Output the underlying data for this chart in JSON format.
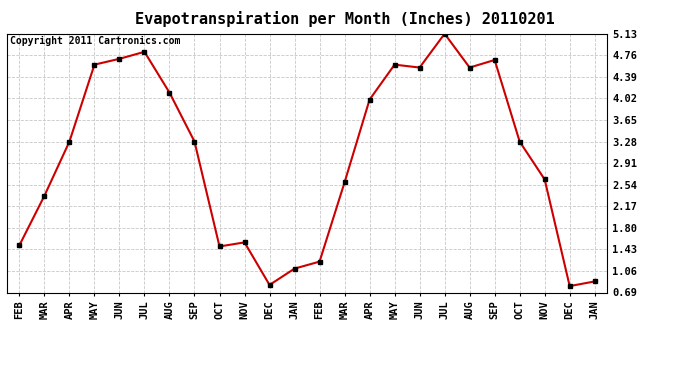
{
  "title": "Evapotranspiration per Month (Inches) 20110201",
  "copyright": "Copyright 2011 Cartronics.com",
  "x_labels": [
    "FEB",
    "MAR",
    "APR",
    "MAY",
    "JUN",
    "JUL",
    "AUG",
    "SEP",
    "OCT",
    "NOV",
    "DEC",
    "JAN",
    "FEB",
    "MAR",
    "APR",
    "MAY",
    "JUN",
    "JUL",
    "AUG",
    "SEP",
    "OCT",
    "NOV",
    "DEC",
    "JAN"
  ],
  "y_values": [
    1.5,
    2.35,
    3.28,
    4.6,
    4.7,
    4.82,
    4.12,
    3.28,
    1.48,
    1.55,
    0.82,
    1.1,
    1.22,
    2.58,
    4.0,
    4.6,
    4.55,
    5.13,
    4.55,
    4.68,
    3.28,
    2.63,
    0.8,
    0.88
  ],
  "y_ticks": [
    0.69,
    1.06,
    1.43,
    1.8,
    2.17,
    2.54,
    2.91,
    3.28,
    3.65,
    4.02,
    4.39,
    4.76,
    5.13
  ],
  "line_color": "#cc0000",
  "marker": "s",
  "marker_color": "#000000",
  "marker_size": 3,
  "background_color": "#ffffff",
  "plot_bg_color": "#ffffff",
  "grid_color": "#c8c8c8",
  "title_fontsize": 11,
  "tick_fontsize": 7.5,
  "copyright_fontsize": 7,
  "ylim": [
    0.69,
    5.13
  ],
  "line_width": 1.5
}
